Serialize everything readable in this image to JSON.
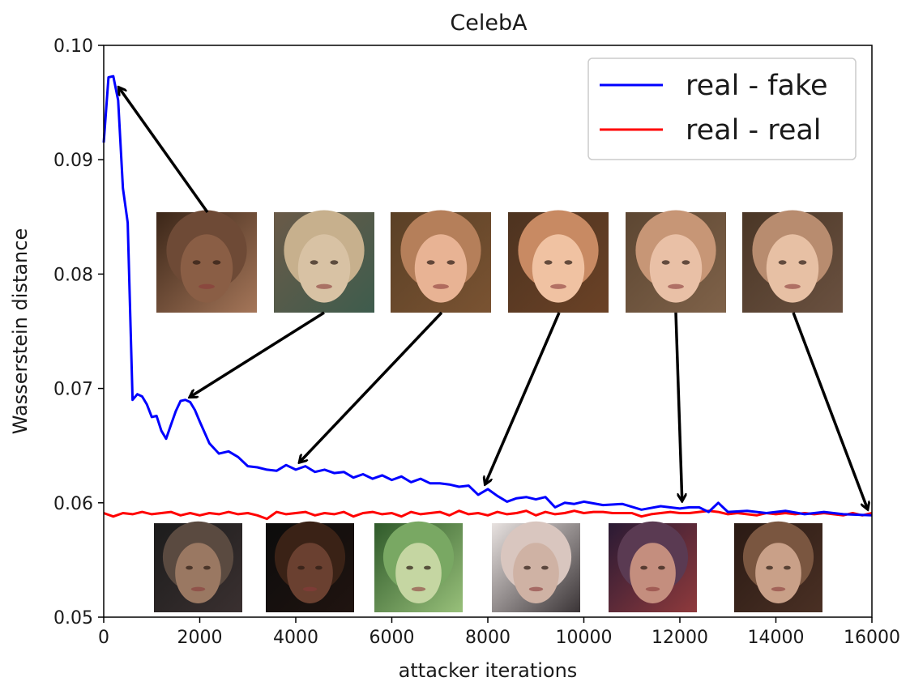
{
  "chart_data": {
    "type": "line",
    "title": "CelebA",
    "xlabel": "attacker iterations",
    "ylabel": "Wasserstein distance",
    "xlim": [
      0,
      16000
    ],
    "ylim": [
      0.05,
      0.1
    ],
    "x_ticks": [
      0,
      2000,
      4000,
      6000,
      8000,
      10000,
      12000,
      14000,
      16000
    ],
    "x_tick_labels": [
      "0",
      "2000",
      "4000",
      "6000",
      "8000",
      "10000",
      "12000",
      "14000",
      "16000"
    ],
    "y_ticks": [
      0.05,
      0.06,
      0.07,
      0.08,
      0.09,
      0.1
    ],
    "y_tick_labels": [
      "0.05",
      "0.06",
      "0.07",
      "0.08",
      "0.09",
      "0.10"
    ],
    "grid": false,
    "legend_position": "top-right",
    "series": [
      {
        "name": "real - fake",
        "color": "#0000ff",
        "x": [
          0,
          100,
          200,
          300,
          400,
          500,
          600,
          700,
          800,
          900,
          1000,
          1100,
          1200,
          1300,
          1400,
          1500,
          1600,
          1700,
          1800,
          1900,
          2000,
          2200,
          2400,
          2600,
          2800,
          3000,
          3200,
          3400,
          3600,
          3800,
          4000,
          4200,
          4400,
          4600,
          4800,
          5000,
          5200,
          5400,
          5600,
          5800,
          6000,
          6200,
          6400,
          6600,
          6800,
          7000,
          7200,
          7400,
          7600,
          7800,
          8000,
          8200,
          8400,
          8600,
          8800,
          9000,
          9200,
          9400,
          9600,
          9800,
          10000,
          10400,
          10800,
          11200,
          11600,
          12000,
          12200,
          12400,
          12600,
          12800,
          13000,
          13400,
          13800,
          14200,
          14600,
          15000,
          15400,
          16000
        ],
        "y": [
          0.0915,
          0.0972,
          0.0973,
          0.0952,
          0.0875,
          0.0845,
          0.069,
          0.0695,
          0.0693,
          0.0686,
          0.0675,
          0.0676,
          0.0663,
          0.0656,
          0.0668,
          0.068,
          0.0689,
          0.069,
          0.0688,
          0.0681,
          0.0671,
          0.0652,
          0.0643,
          0.0645,
          0.064,
          0.0632,
          0.0631,
          0.0629,
          0.0628,
          0.0633,
          0.0629,
          0.0632,
          0.0627,
          0.0629,
          0.0626,
          0.0627,
          0.0622,
          0.0625,
          0.0621,
          0.0624,
          0.062,
          0.0623,
          0.0618,
          0.0621,
          0.0617,
          0.0617,
          0.0616,
          0.0614,
          0.0615,
          0.0607,
          0.0612,
          0.0606,
          0.0601,
          0.0604,
          0.0605,
          0.0603,
          0.0605,
          0.0596,
          0.06,
          0.0599,
          0.0601,
          0.0598,
          0.0599,
          0.0594,
          0.0597,
          0.0595,
          0.0596,
          0.0596,
          0.0592,
          0.06,
          0.0592,
          0.0593,
          0.0591,
          0.0593,
          0.059,
          0.0592,
          0.059,
          0.0589
        ]
      },
      {
        "name": "real - real",
        "color": "#ff0000",
        "x": [
          0,
          200,
          400,
          600,
          800,
          1000,
          1200,
          1400,
          1600,
          1800,
          2000,
          2200,
          2400,
          2600,
          2800,
          3000,
          3200,
          3400,
          3600,
          3800,
          4000,
          4200,
          4400,
          4600,
          4800,
          5000,
          5200,
          5400,
          5600,
          5800,
          6000,
          6200,
          6400,
          6600,
          6800,
          7000,
          7200,
          7400,
          7600,
          7800,
          8000,
          8200,
          8400,
          8600,
          8800,
          9000,
          9200,
          9400,
          9600,
          9800,
          10000,
          10200,
          10400,
          10600,
          10800,
          11000,
          11200,
          11400,
          11600,
          11800,
          12000,
          12200,
          12400,
          12600,
          12800,
          13000,
          13200,
          13400,
          13600,
          13800,
          14000,
          14200,
          14400,
          14600,
          14800,
          15000,
          15200,
          15400,
          15600,
          15800,
          16000
        ],
        "y": [
          0.0591,
          0.0588,
          0.0591,
          0.059,
          0.0592,
          0.059,
          0.0591,
          0.0592,
          0.0589,
          0.0591,
          0.0589,
          0.0591,
          0.059,
          0.0592,
          0.059,
          0.0591,
          0.0589,
          0.0586,
          0.0592,
          0.059,
          0.0591,
          0.0592,
          0.0589,
          0.0591,
          0.059,
          0.0592,
          0.0588,
          0.0591,
          0.0592,
          0.059,
          0.0591,
          0.0588,
          0.0592,
          0.059,
          0.0591,
          0.0592,
          0.0589,
          0.0593,
          0.059,
          0.0591,
          0.0589,
          0.0592,
          0.059,
          0.0591,
          0.0593,
          0.0589,
          0.0592,
          0.059,
          0.0591,
          0.0593,
          0.0591,
          0.0592,
          0.0592,
          0.0591,
          0.0591,
          0.0591,
          0.0588,
          0.059,
          0.0591,
          0.0592,
          0.0591,
          0.0591,
          0.0592,
          0.0593,
          0.0592,
          0.059,
          0.0591,
          0.059,
          0.0589,
          0.0591,
          0.059,
          0.0591,
          0.059,
          0.0591,
          0.059,
          0.0591,
          0.059,
          0.0589,
          0.0591,
          0.0589,
          0.0591
        ]
      }
    ]
  },
  "generated_samples": [
    {
      "name": "generated-face-iter-200",
      "points_to": [
        250,
        0.0967
      ],
      "palette": [
        "#3b2618",
        "#6e4a36",
        "#8a5e45",
        "#a57659"
      ]
    },
    {
      "name": "generated-face-iter-1700",
      "points_to": [
        1700,
        0.069
      ],
      "palette": [
        "#6a5a48",
        "#c7b08d",
        "#d8c2a4",
        "#3e5c4d"
      ]
    },
    {
      "name": "generated-face-iter-4000",
      "points_to": [
        4000,
        0.0632
      ],
      "palette": [
        "#5a4026",
        "#b57f5a",
        "#e8b394",
        "#7a5332"
      ]
    },
    {
      "name": "generated-face-iter-8000",
      "points_to": [
        7900,
        0.0612
      ],
      "palette": [
        "#4d3320",
        "#c88a63",
        "#f0c2a2",
        "#6b4226"
      ]
    },
    {
      "name": "generated-face-iter-12000",
      "points_to": [
        12050,
        0.0597
      ],
      "palette": [
        "#5c4632",
        "#c79676",
        "#e9c0a6",
        "#7f6249"
      ]
    },
    {
      "name": "generated-face-iter-16000",
      "points_to": [
        15950,
        0.059
      ],
      "palette": [
        "#4a3626",
        "#b88c6f",
        "#e7c0a4",
        "#6a5140"
      ]
    }
  ],
  "real_samples": [
    {
      "name": "real-face-1",
      "palette": [
        "#1c1c1c",
        "#5a4a40",
        "#9a7862",
        "#3a3030"
      ]
    },
    {
      "name": "real-face-2",
      "palette": [
        "#0c0c0c",
        "#3a2216",
        "#6a4030",
        "#201410"
      ]
    },
    {
      "name": "real-face-3",
      "palette": [
        "#2f5a2a",
        "#79a863",
        "#c5d6a2",
        "#98c07a"
      ]
    },
    {
      "name": "real-face-4",
      "palette": [
        "#e8e2e0",
        "#d9c6bf",
        "#cfb2a4",
        "#3a3436"
      ]
    },
    {
      "name": "real-face-5",
      "palette": [
        "#2a1a34",
        "#5a3a52",
        "#c48e7e",
        "#8f3a3c"
      ]
    },
    {
      "name": "real-face-6",
      "palette": [
        "#2a1a14",
        "#7a5640",
        "#c9a088",
        "#4a3024"
      ]
    }
  ]
}
